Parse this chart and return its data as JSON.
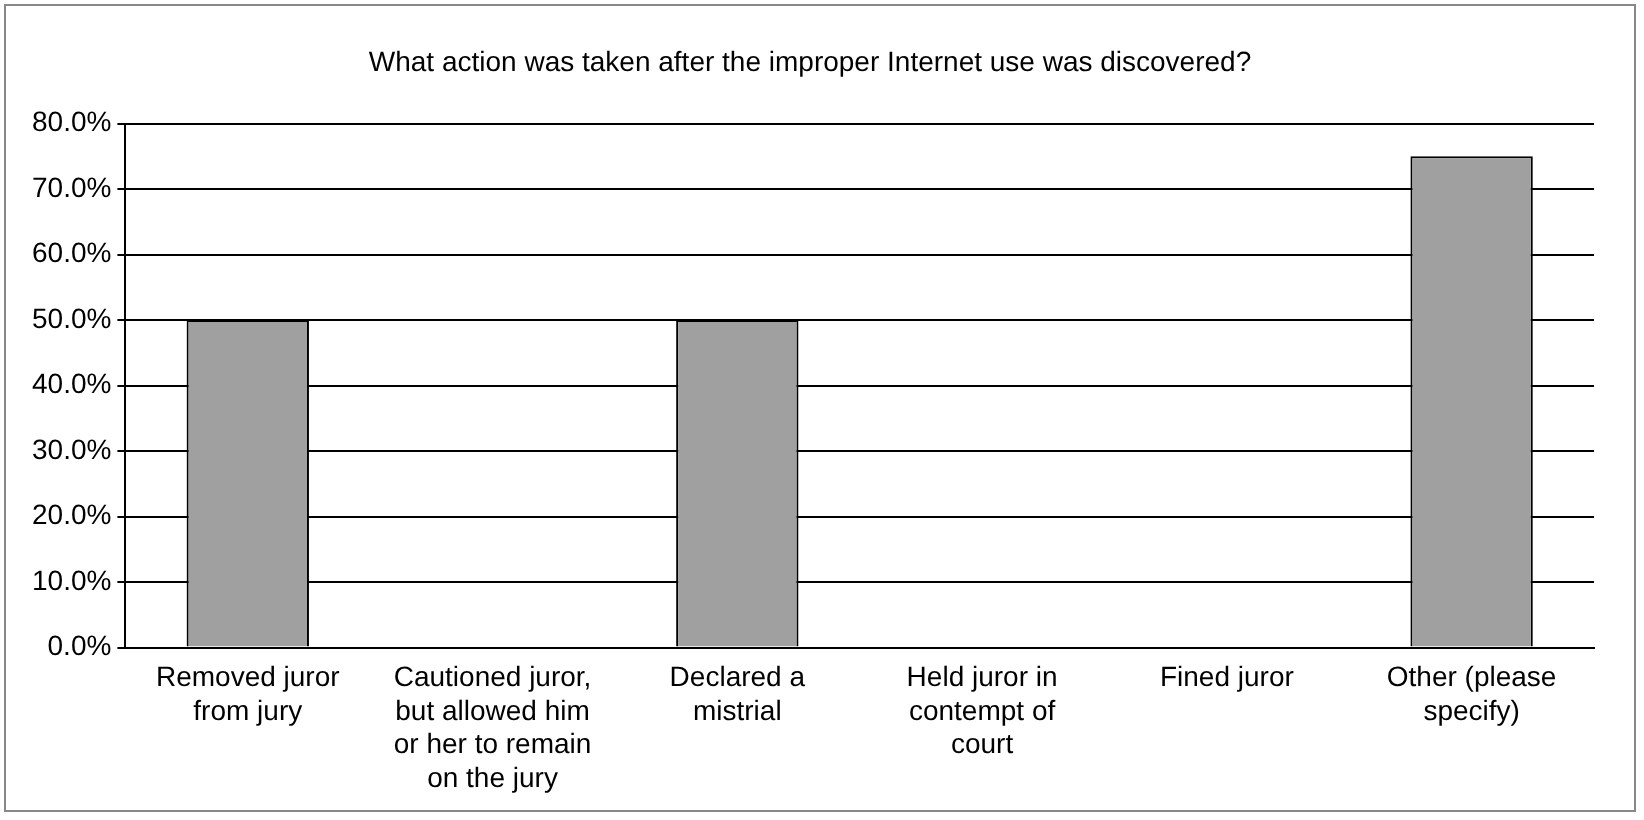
{
  "chart_data": {
    "type": "bar",
    "title": "What action was taken after the improper Internet use was discovered?",
    "categories": [
      "Removed juror from jury",
      "Cautioned juror, but allowed him or her to remain on the jury",
      "Declared a mistrial",
      "Held juror in contempt of court",
      "Fined juror",
      "Other (please specify)"
    ],
    "values": [
      50,
      0,
      50,
      0,
      0,
      75
    ],
    "color": "#a0a0a0",
    "ylim": [
      0,
      80
    ],
    "yticks": [
      {
        "value": 0,
        "label": "0.0%"
      },
      {
        "value": 10,
        "label": "10.0%"
      },
      {
        "value": 20,
        "label": "20.0%"
      },
      {
        "value": 30,
        "label": "30.0%"
      },
      {
        "value": 40,
        "label": "40.0%"
      },
      {
        "value": 50,
        "label": "50.0%"
      },
      {
        "value": 60,
        "label": "60.0%"
      },
      {
        "value": 70,
        "label": "70.0%"
      },
      {
        "value": 80,
        "label": "80.0%"
      }
    ],
    "grid": "y",
    "legend": false
  }
}
